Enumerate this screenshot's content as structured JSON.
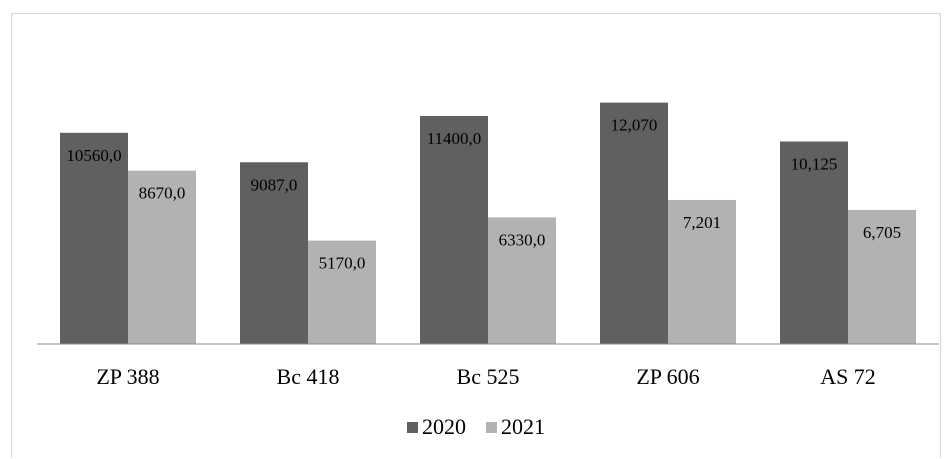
{
  "chart_data": {
    "type": "bar",
    "categories": [
      "ZP 388",
      "Bc 418",
      "Bc 525",
      "ZP 606",
      "AS 72"
    ],
    "series": [
      {
        "name": "2020",
        "color": "#606060",
        "values": [
          10560,
          9087,
          11400,
          12070,
          10125
        ],
        "labels": [
          "10560,0",
          "9087,0",
          "11400,0",
          "12,070",
          "10,125"
        ]
      },
      {
        "name": "2021",
        "color": "#b2b2b2",
        "values": [
          8670,
          5170,
          6330,
          7201,
          6705
        ],
        "labels": [
          "8670,0",
          "5170,0",
          "6330,0",
          "7,201",
          "6,705"
        ]
      }
    ],
    "ylim": [
      0,
      13000
    ],
    "grid": false,
    "legend_position": "bottom"
  }
}
